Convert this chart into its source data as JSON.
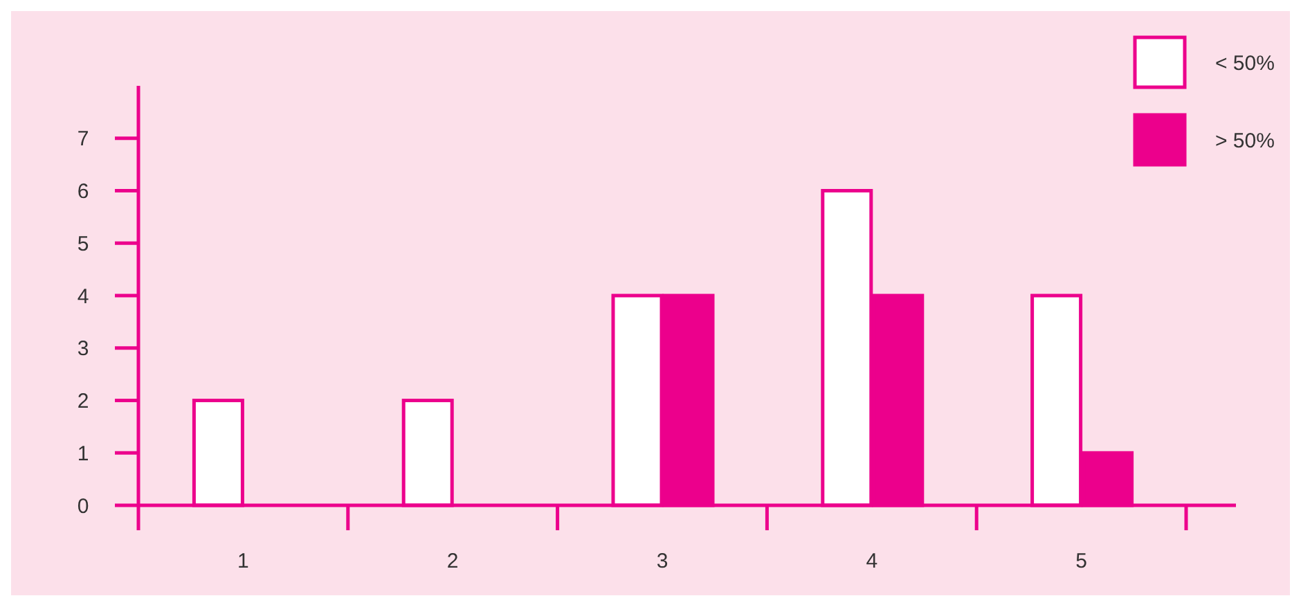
{
  "chart_data": {
    "type": "bar",
    "categories": [
      "1",
      "2",
      "3",
      "4",
      "5"
    ],
    "series": [
      {
        "name": "< 50%",
        "color": "#ffffff",
        "values": [
          2,
          2,
          4,
          6,
          4
        ]
      },
      {
        "name": "> 50%",
        "color": "#ec008c",
        "values": [
          0,
          0,
          4,
          4,
          1
        ]
      }
    ],
    "ylim": [
      0,
      8
    ],
    "yticks": [
      0,
      1,
      2,
      3,
      4,
      5,
      6,
      7
    ],
    "grid": false,
    "legend": "top right"
  }
}
